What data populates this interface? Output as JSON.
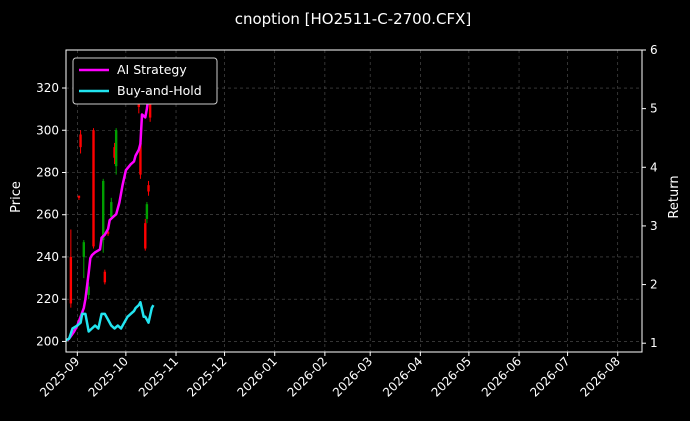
{
  "chart_data": {
    "type": "candlestick-with-lines",
    "title": "cnoption [HO2511-C-2700.CFX]",
    "ylabel": "Price",
    "y2label": "Return",
    "ylim": [
      195,
      338
    ],
    "y2lim": [
      0.85,
      6.0
    ],
    "yticks": [
      200,
      220,
      240,
      260,
      280,
      300,
      320
    ],
    "y2ticks": [
      1,
      2,
      3,
      4,
      5,
      6
    ],
    "xlim": [
      "2025-08-25",
      "2026-08-16"
    ],
    "xticks": [
      "2025-09-01",
      "2025-10-01",
      "2025-11-01",
      "2025-12-01",
      "2026-01-01",
      "2026-02-01",
      "2026-03-01",
      "2026-04-01",
      "2026-05-01",
      "2026-06-01",
      "2026-07-01",
      "2026-08-01"
    ],
    "xtick_labels": [
      "2025-09",
      "2025-10",
      "2025-11",
      "2025-12",
      "2026-01",
      "2026-02",
      "2026-03",
      "2026-04",
      "2026-05",
      "2026-06",
      "2026-07",
      "2026-08"
    ],
    "grid": true,
    "legend_position": "top-left",
    "colors": {
      "up": "#00a000",
      "down": "#ff0000",
      "ai": "#ff00ff",
      "bh": "#22e4f0",
      "background": "#000000",
      "grid": "#555555"
    },
    "candles": [
      {
        "date": "2025-08-28",
        "open": 240,
        "close": 218,
        "high": 253,
        "low": 216
      },
      {
        "date": "2025-09-02",
        "open": 269,
        "close": 268,
        "high": 269,
        "low": 267
      },
      {
        "date": "2025-09-03",
        "open": 298,
        "close": 292,
        "high": 300,
        "low": 289
      },
      {
        "date": "2025-09-05",
        "open": 240,
        "close": 247,
        "high": 248,
        "low": 230
      },
      {
        "date": "2025-09-08",
        "open": 222,
        "close": 226,
        "high": 228,
        "low": 220
      },
      {
        "date": "2025-09-11",
        "open": 300,
        "close": 245,
        "high": 301,
        "low": 244
      },
      {
        "date": "2025-09-17",
        "open": 248,
        "close": 276,
        "high": 277,
        "low": 242
      },
      {
        "date": "2025-09-18",
        "open": 233,
        "close": 228,
        "high": 234,
        "low": 227
      },
      {
        "date": "2025-09-20",
        "open": 252,
        "close": 251,
        "high": 254,
        "low": 250
      },
      {
        "date": "2025-09-22",
        "open": 259,
        "close": 266,
        "high": 268,
        "low": 258
      },
      {
        "date": "2025-09-24",
        "open": 292,
        "close": 287,
        "high": 294,
        "low": 284
      },
      {
        "date": "2025-09-25",
        "open": 283,
        "close": 300,
        "high": 301,
        "low": 279
      },
      {
        "date": "2025-10-09",
        "open": 316,
        "close": 311,
        "high": 318,
        "low": 308
      },
      {
        "date": "2025-10-10",
        "open": 294,
        "close": 279,
        "high": 298,
        "low": 277
      },
      {
        "date": "2025-10-13",
        "open": 256,
        "close": 244,
        "high": 258,
        "low": 243
      },
      {
        "date": "2025-10-14",
        "open": 258,
        "close": 265,
        "high": 266,
        "low": 256
      },
      {
        "date": "2025-10-15",
        "open": 274,
        "close": 271,
        "high": 276,
        "low": 269
      },
      {
        "date": "2025-10-16",
        "open": 315,
        "close": 306,
        "high": 318,
        "low": 304
      }
    ],
    "series": [
      {
        "name": "AI Strategy",
        "axis": "right",
        "x": [
          "2025-08-26",
          "2025-08-28",
          "2025-08-30",
          "2025-09-01",
          "2025-09-03",
          "2025-09-05",
          "2025-09-06",
          "2025-09-08",
          "2025-09-09",
          "2025-09-10",
          "2025-09-12",
          "2025-09-15",
          "2025-09-16",
          "2025-09-18",
          "2025-09-20",
          "2025-09-21",
          "2025-09-23",
          "2025-09-25",
          "2025-09-27",
          "2025-09-29",
          "2025-10-01",
          "2025-10-04",
          "2025-10-06",
          "2025-10-07",
          "2025-10-09",
          "2025-10-10",
          "2025-10-11",
          "2025-10-13",
          "2025-10-14",
          "2025-10-15",
          "2025-10-16",
          "2025-10-17"
        ],
        "values": [
          1.05,
          1.12,
          1.2,
          1.3,
          1.45,
          1.6,
          1.75,
          2.2,
          2.45,
          2.5,
          2.55,
          2.6,
          2.8,
          2.85,
          2.95,
          3.1,
          3.15,
          3.2,
          3.4,
          3.7,
          3.95,
          4.05,
          4.1,
          4.2,
          4.3,
          4.4,
          4.9,
          4.85,
          5.0,
          5.2,
          5.4,
          5.7
        ]
      },
      {
        "name": "Buy-and-Hold",
        "axis": "right",
        "x": [
          "2025-08-25",
          "2025-08-27",
          "2025-08-29",
          "2025-09-01",
          "2025-09-03",
          "2025-09-04",
          "2025-09-06",
          "2025-09-08",
          "2025-09-10",
          "2025-09-12",
          "2025-09-14",
          "2025-09-16",
          "2025-09-18",
          "2025-09-20",
          "2025-09-22",
          "2025-09-24",
          "2025-09-26",
          "2025-09-28",
          "2025-09-30",
          "2025-10-02",
          "2025-10-04",
          "2025-10-06",
          "2025-10-07",
          "2025-10-09",
          "2025-10-10",
          "2025-10-12",
          "2025-10-13",
          "2025-10-14",
          "2025-10-15",
          "2025-10-17",
          "2025-10-18"
        ],
        "values": [
          1.05,
          1.08,
          1.25,
          1.3,
          1.35,
          1.5,
          1.5,
          1.2,
          1.25,
          1.3,
          1.25,
          1.5,
          1.5,
          1.4,
          1.3,
          1.25,
          1.3,
          1.25,
          1.35,
          1.45,
          1.5,
          1.55,
          1.6,
          1.65,
          1.7,
          1.45,
          1.45,
          1.4,
          1.35,
          1.6,
          1.65
        ]
      }
    ]
  }
}
